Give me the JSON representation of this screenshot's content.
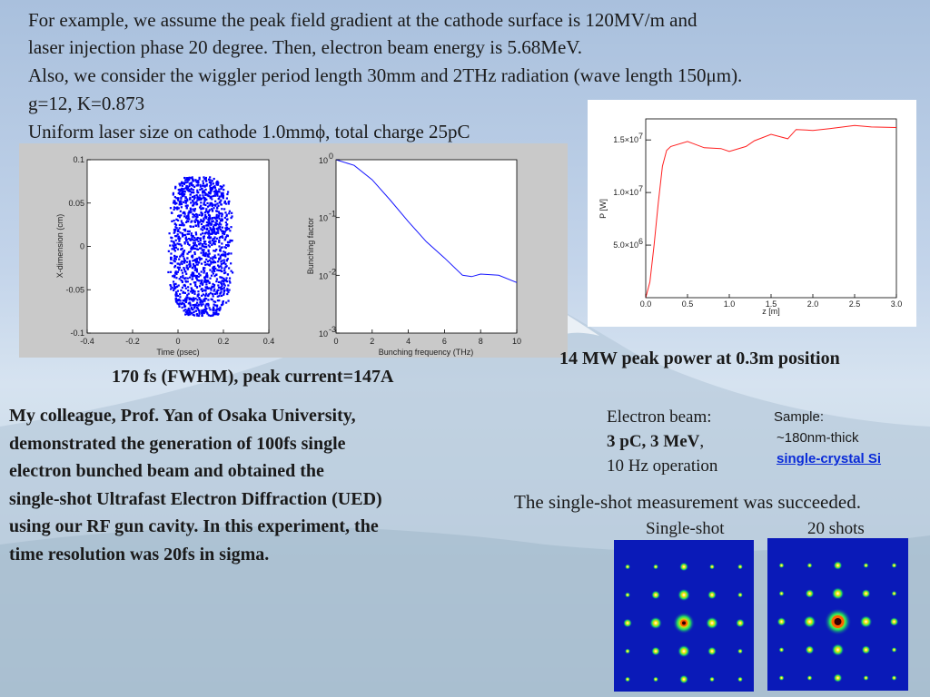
{
  "intro": {
    "line1": "For example, we assume the peak field gradient at the cathode surface is 120MV/m and",
    "line2": "laser injection phase 20 degree. Then, electron beam energy is 5.68MeV.",
    "line3": "Also, we consider the wiggler period length 30mm and 2THz radiation (wave length 150μm).",
    "line4": "g=12, K=0.873",
    "line5": "Uniform laser size on cathode 1.0mmϕ, total charge 25pC"
  },
  "left_caption": "170 fs (FWHM), peak current=147A",
  "right_caption": "14 MW peak power at 0.3m position",
  "ued_paragraph": [
    "My colleague, Prof. Yan of Osaka University,",
    "demonstrated the generation of 100fs single",
    "electron bunched beam and obtained the",
    "single-shot Ultrafast Electron Diffraction (UED)",
    "using our RF gun cavity. In this experiment, the",
    "time resolution was 20fs in sigma."
  ],
  "electron_beam": {
    "label": "Electron beam:",
    "value": "3 pC, 3 MeV",
    "comma": ",",
    "rate": "10 Hz operation"
  },
  "sample": {
    "label": "Sample:",
    "thickness": "~180nm-thick",
    "material": "single-crystal Si"
  },
  "measurement_caption": "The single-shot measurement was succeeded.",
  "diffraction_labels": {
    "single": "Single-shot",
    "multi": "20 shots"
  },
  "scatter_plot": {
    "xlabel": "Time (psec)",
    "ylabel": "X-dimension (cm)",
    "xticks": [
      "-0.4",
      "-0.2",
      "0",
      "0.2",
      "0.4"
    ],
    "yticks": [
      "0.1",
      "0.05",
      "0",
      "-0.05",
      "-0.1"
    ]
  },
  "bunching_plot": {
    "xlabel": "Bunching frequency (THz)",
    "ylabel": "Bunching factor",
    "xticks": [
      "0",
      "2",
      "4",
      "6",
      "8",
      "10"
    ],
    "yticks": [
      "10",
      "10",
      "10",
      "10"
    ],
    "yexp": [
      "0",
      "-1",
      "-2",
      "-3"
    ]
  },
  "power_plot": {
    "xlabel": "z [m]",
    "ylabel": "P [W]",
    "xticks": [
      "0.0",
      "0.5",
      "1.0",
      "1.5",
      "2.0",
      "2.5",
      "3.0"
    ],
    "yticks": [
      "1.5×10",
      "1.0×10",
      "5.0×10"
    ],
    "yexp": [
      "7",
      "7",
      "6"
    ]
  },
  "chart_data": [
    {
      "type": "scatter",
      "title": "",
      "xlabel": "Time (psec)",
      "ylabel": "X-dimension (cm)",
      "xlim": [
        -0.4,
        0.4
      ],
      "ylim": [
        -0.1,
        0.1
      ],
      "description_points": "dense electron cloud spanning roughly x -0.05..0.24, y -0.08..0.08",
      "color": "#0000ff"
    },
    {
      "type": "line",
      "xlabel": "Bunching frequency (THz)",
      "ylabel": "Bunching factor",
      "xlim": [
        0,
        10
      ],
      "ylim": [
        0.001,
        1
      ],
      "yscale": "log",
      "x": [
        0,
        1,
        2,
        3,
        4,
        5,
        6,
        7,
        7.5,
        8,
        9,
        10
      ],
      "y": [
        1.0,
        0.8,
        0.45,
        0.2,
        0.085,
        0.038,
        0.02,
        0.01,
        0.0095,
        0.0105,
        0.01,
        0.0075
      ],
      "color": "#0000ff"
    },
    {
      "type": "line",
      "xlabel": "z [m]",
      "ylabel": "P [W]",
      "xlim": [
        0,
        3
      ],
      "ylim": [
        0,
        17000000
      ],
      "x": [
        0,
        0.05,
        0.1,
        0.15,
        0.2,
        0.25,
        0.3,
        0.5,
        0.7,
        0.9,
        1.0,
        1.2,
        1.3,
        1.5,
        1.7,
        1.8,
        2.0,
        2.2,
        2.5,
        2.7,
        3.0
      ],
      "y": [
        0,
        1500000,
        5000000,
        9000000,
        12500000,
        14000000,
        14500000,
        14800000,
        14200000,
        14300000,
        13800000,
        14400000,
        15000000,
        15400000,
        15200000,
        16000000,
        15800000,
        16200000,
        16300000,
        16200000,
        16300000
      ],
      "color": "#ff0000"
    }
  ]
}
